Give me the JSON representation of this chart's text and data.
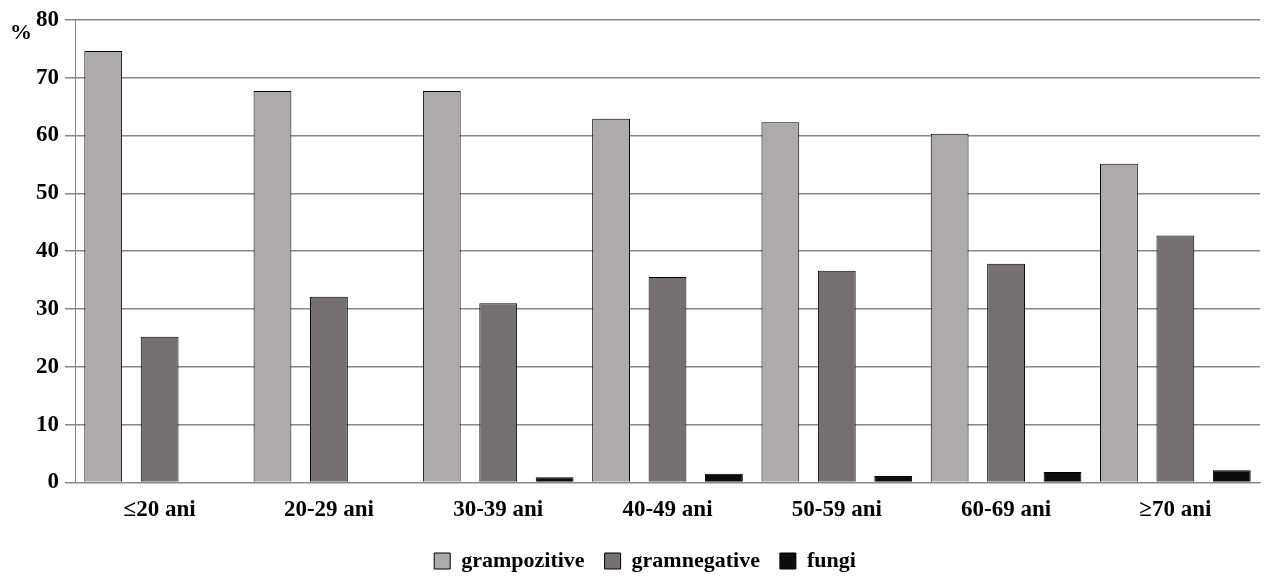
{
  "chart_data": {
    "type": "bar",
    "ylabel": "%",
    "categories": [
      "≤20 ani",
      "20-29 ani",
      "30-39 ani",
      "40-49 ani",
      "50-59 ani",
      "60-69 ani",
      "≥70 ani"
    ],
    "series": [
      {
        "name": "grampozitive",
        "color": "#aeaaa9",
        "values": [
          74.6,
          67.7,
          67.7,
          62.9,
          62.3,
          60.3,
          55.1
        ]
      },
      {
        "name": "gramnegative",
        "color": "#767170",
        "values": [
          25.2,
          32.1,
          31.0,
          35.5,
          36.6,
          37.8,
          42.7
        ]
      },
      {
        "name": "fungi",
        "color": "#0d0d0d",
        "values": [
          0,
          0,
          0.9,
          1.5,
          1.1,
          1.8,
          2.1
        ]
      }
    ],
    "ylim": [
      0,
      80
    ],
    "yticks": [
      0,
      10,
      20,
      30,
      40,
      50,
      60,
      70,
      80
    ],
    "grid": "y",
    "legend": "bottom"
  }
}
